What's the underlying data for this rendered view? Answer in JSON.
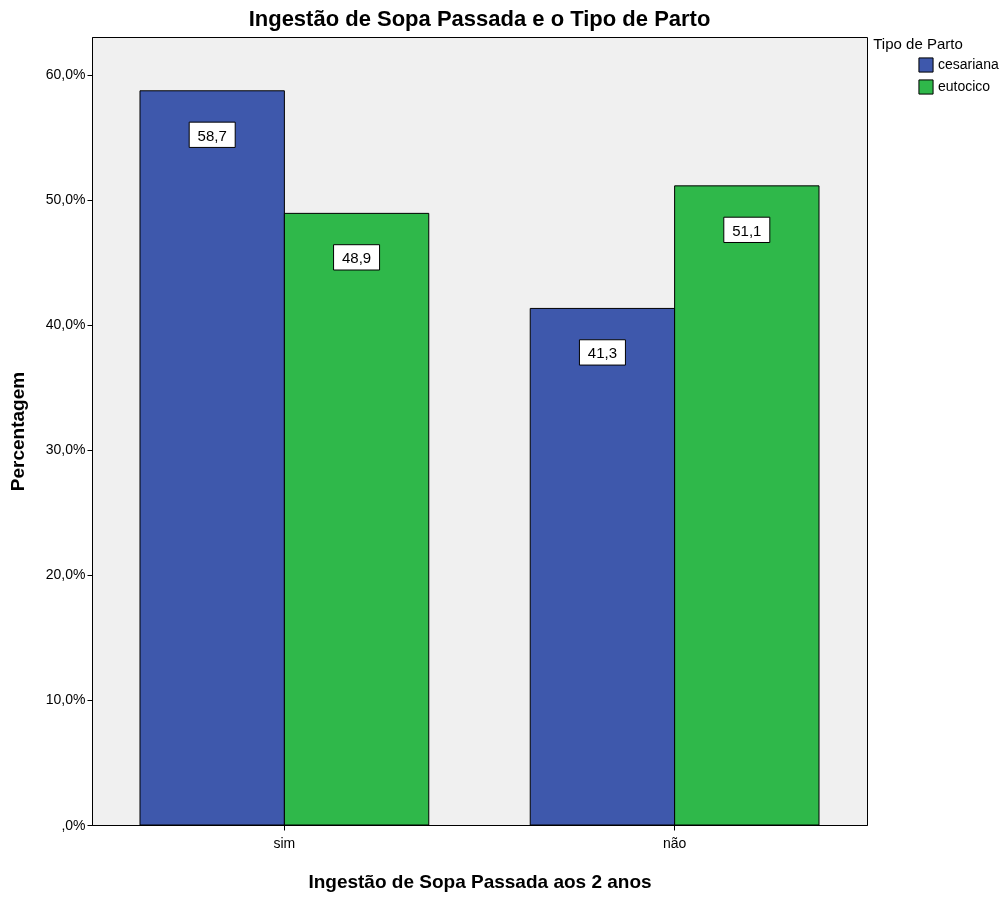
{
  "chart_data": {
    "type": "bar",
    "title": "Ingestão de Sopa Passada e o Tipo de Parto",
    "xlabel": "Ingestão de Sopa Passada aos 2 anos",
    "ylabel": "Percentagem",
    "legend_title": "Tipo de Parto",
    "legend": "right",
    "grid": false,
    "categories": [
      "sim",
      "não"
    ],
    "series": [
      {
        "name": "cesariana",
        "color": "#3e58ac",
        "values": [
          58.7,
          41.3
        ],
        "value_labels": [
          "58,7",
          "41,3"
        ]
      },
      {
        "name": "eutocico",
        "color": "#2fb84a",
        "values": [
          48.9,
          51.1
        ],
        "value_labels": [
          "48,9",
          "51,1"
        ]
      }
    ],
    "ylim": [
      0,
      63
    ],
    "yticks": [
      {
        "value": 0,
        "label": ",0%"
      },
      {
        "value": 10,
        "label": "10,0%"
      },
      {
        "value": 20,
        "label": "20,0%"
      },
      {
        "value": 30,
        "label": "30,0%"
      },
      {
        "value": 40,
        "label": "40,0%"
      },
      {
        "value": 50,
        "label": "50,0%"
      },
      {
        "value": 60,
        "label": "60,0%"
      }
    ]
  }
}
